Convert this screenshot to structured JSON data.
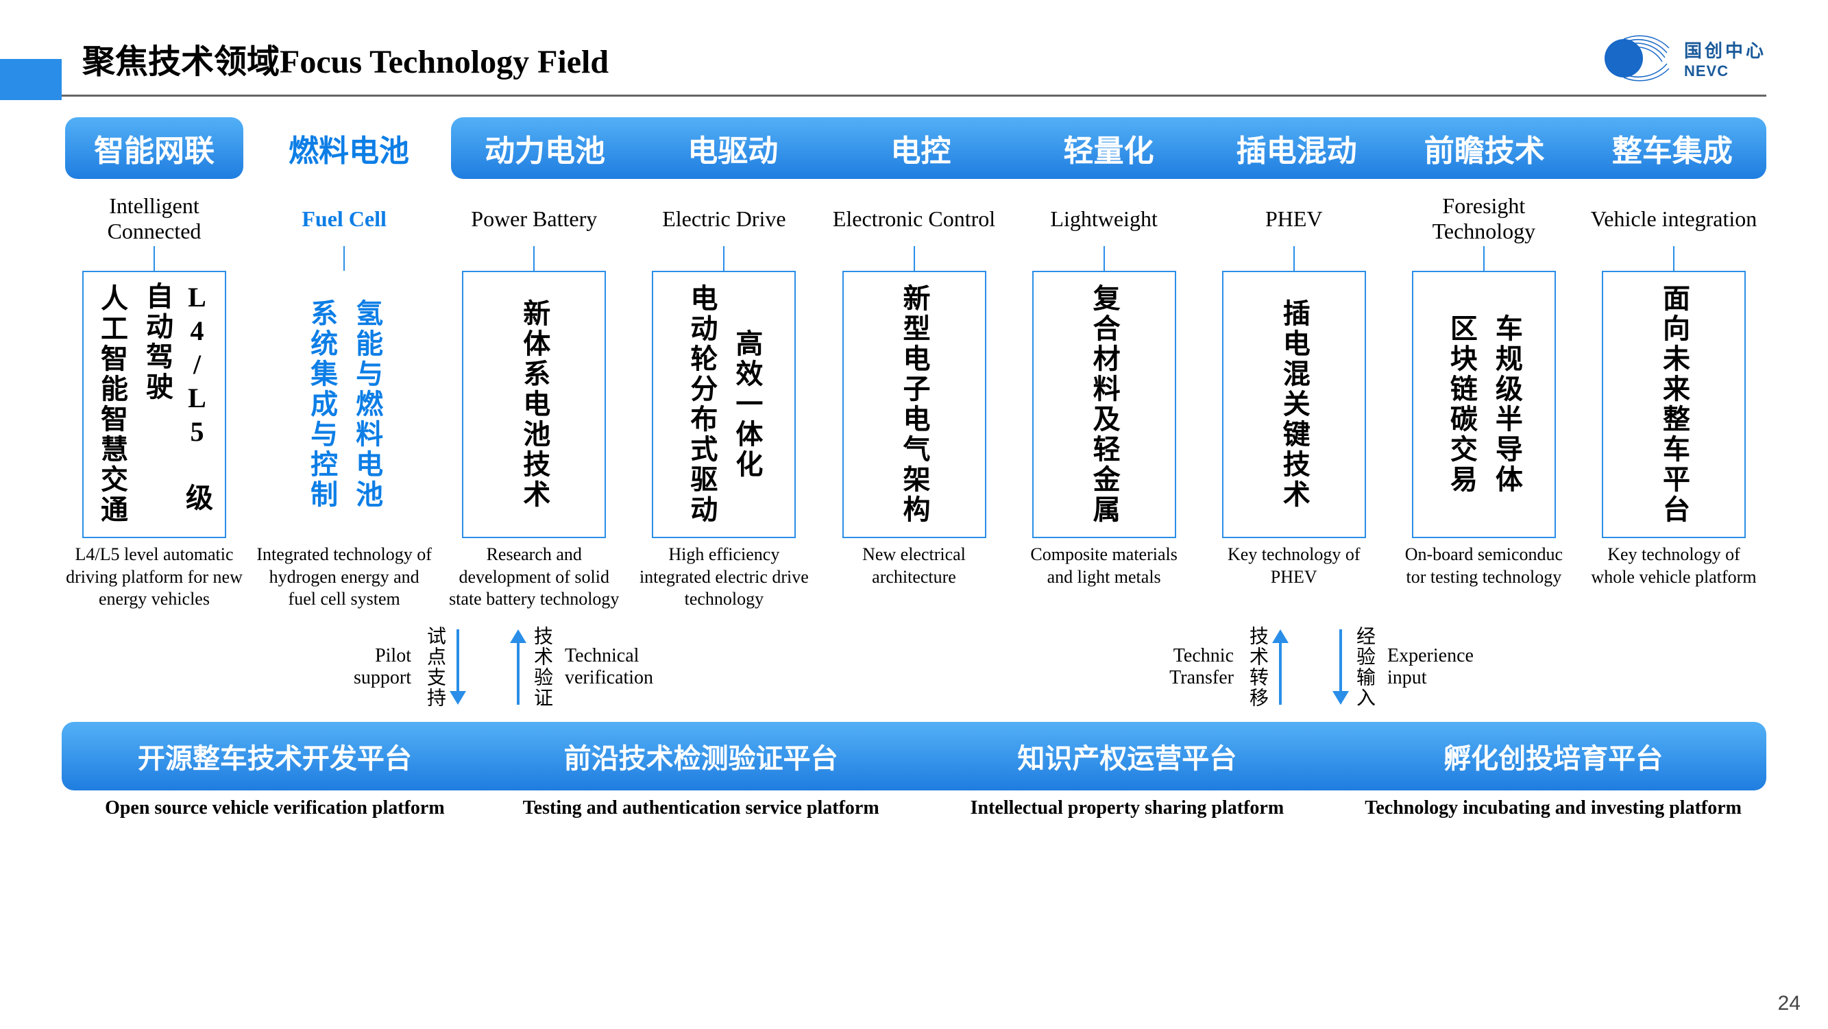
{
  "title": "聚焦技术领域Focus Technology Field",
  "logo": {
    "cn": "国创中心",
    "en": "NEVC"
  },
  "page_number": "24",
  "colors": {
    "accent": "#2a8ee8",
    "blue_text": "#0d7ee6",
    "pill_gradient_top": "#53b0f6",
    "pill_gradient_bottom": "#1f7de0",
    "hr": "#666666",
    "logo_text": "#1a5a9a"
  },
  "columns": [
    {
      "cn": "智能网联",
      "en": "Intelligent Connected",
      "detail_lines": [
        "人工智能智慧交通",
        "L4/L5 级自动驾驶"
      ],
      "desc": "L4/L5 level automatic driving platform for new energy vehicles",
      "pill_style": "single",
      "en_style": ""
    },
    {
      "cn": "燃料电池",
      "en": "Fuel Cell",
      "detail_lines": [
        "系统集成与控制",
        "氢能与燃料电池"
      ],
      "desc": "Integrated technology of hydrogen energy and fuel cell system",
      "pill_style": "text-only",
      "en_style": "blue",
      "box_style": "noborder",
      "vtext_style": "blue"
    },
    {
      "cn": "动力电池",
      "en": "Power Battery",
      "detail_lines": [
        "新体系电池技术"
      ],
      "desc": "Research and development of solid state battery technology",
      "group": "wide"
    },
    {
      "cn": "电驱动",
      "en": "Electric Drive",
      "detail_lines": [
        "电动轮分布式驱动",
        "高效一体化"
      ],
      "desc": "High efficiency integrated electric drive technology",
      "group": "wide"
    },
    {
      "cn": "电控",
      "en": "Electronic Control",
      "detail_lines": [
        "新型电子电气架构"
      ],
      "desc": "New electrical architecture",
      "group": "wide"
    },
    {
      "cn": "轻量化",
      "en": "Lightweight",
      "detail_lines": [
        "复合材料及轻金属"
      ],
      "desc": "Composite materials and light metals",
      "group": "wide"
    },
    {
      "cn": "插电混动",
      "en": "PHEV",
      "detail_lines": [
        "插电混关键技术"
      ],
      "desc": "Key technology of PHEV",
      "group": "wide"
    },
    {
      "cn": "前瞻技术",
      "en": "Foresight Technology",
      "detail_lines": [
        "区块链碳交易",
        "车规级半导体"
      ],
      "desc": "On-board semiconduc tor testing technology",
      "group": "wide"
    },
    {
      "cn": "整车集成",
      "en": "Vehicle integration",
      "detail_lines": [
        "面向未来整车平台"
      ],
      "desc": "Key technology of whole vehicle platform",
      "group": "wide"
    }
  ],
  "arrows": {
    "left": {
      "left_en": "Pilot support",
      "left_cn": "试点支持",
      "left_dir": "down",
      "right_en": "Technical verification",
      "right_cn": "技术验证",
      "right_dir": "up"
    },
    "right": {
      "left_en": "Technic Transfer",
      "left_cn": "技术转移",
      "left_dir": "up",
      "right_en": "Experience input",
      "right_cn": "经验输入",
      "right_dir": "down"
    }
  },
  "platforms": [
    {
      "cn": "开源整车技术开发平台",
      "en": "Open source vehicle verification platform"
    },
    {
      "cn": "前沿技术检测验证平台",
      "en": "Testing and authentication service platform"
    },
    {
      "cn": "知识产权运营平台",
      "en": "Intellectual property sharing platform"
    },
    {
      "cn": "孵化创投培育平台",
      "en": "Technology incubating and investing platform"
    }
  ]
}
